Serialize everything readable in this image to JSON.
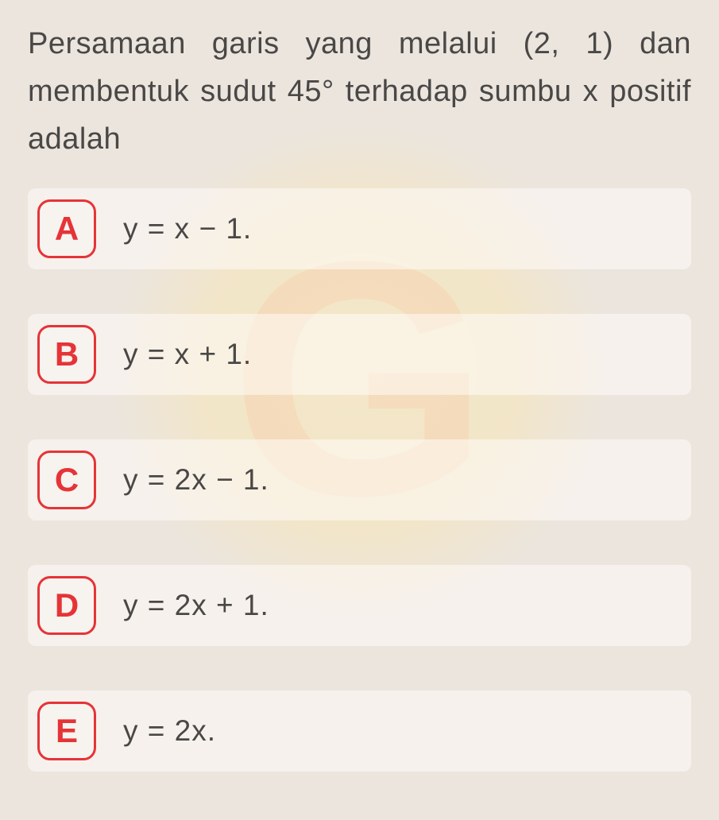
{
  "question": {
    "text": "Persamaan garis yang melalui (2, 1) dan membentuk sudut 45° terhadap sumbu x positif adalah"
  },
  "options": [
    {
      "letter": "A",
      "text": "y = x − 1."
    },
    {
      "letter": "B",
      "text": "y = x + 1."
    },
    {
      "letter": "C",
      "text": "y = 2x − 1."
    },
    {
      "letter": "D",
      "text": "y = 2x + 1."
    },
    {
      "letter": "E",
      "text": "y = 2x."
    }
  ],
  "styling": {
    "background_color": "#ebe5de",
    "text_color": "#4a4846",
    "accent_color": "#e53438",
    "option_bg": "rgba(255,252,248,0.55)",
    "question_fontsize": 38,
    "option_fontsize": 37,
    "letter_fontsize": 42,
    "letter_box_size": 74,
    "letter_box_radius": 16,
    "letter_border_width": 3.5,
    "watermark_color": "rgba(255,230,160,0.4)",
    "watermark_letter": "G"
  }
}
